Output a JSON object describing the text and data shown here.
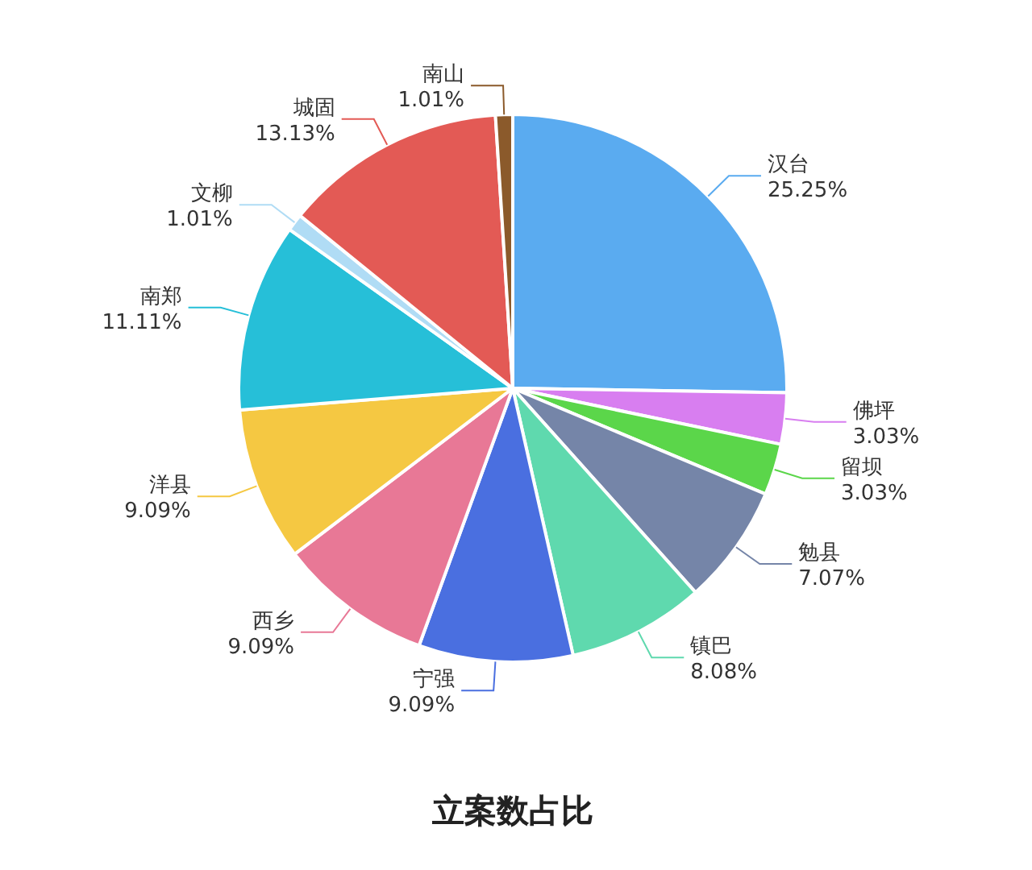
{
  "chart_data": {
    "type": "pie",
    "title": "立案数占比",
    "categories": [
      "汉台",
      "佛坪",
      "留坝",
      "勉县",
      "镇巴",
      "宁强",
      "西乡",
      "洋县",
      "南郑",
      "文柳",
      "城固",
      "南山"
    ],
    "values": [
      25.25,
      3.03,
      3.03,
      7.07,
      8.08,
      9.09,
      9.09,
      9.09,
      11.11,
      1.01,
      13.13,
      1.01
    ],
    "value_labels": [
      "25.25%",
      "3.03%",
      "3.03%",
      "7.07%",
      "8.08%",
      "9.09%",
      "9.09%",
      "9.09%",
      "11.11%",
      "1.01%",
      "13.13%",
      "1.01%"
    ],
    "colors": [
      "#5aabf0",
      "#d87ef0",
      "#5bd64a",
      "#7585a8",
      "#5fd9ae",
      "#4a6fe0",
      "#e87896",
      "#f5c842",
      "#26bfd8",
      "#b0dcf5",
      "#e35a55",
      "#8b5a2b"
    ]
  }
}
